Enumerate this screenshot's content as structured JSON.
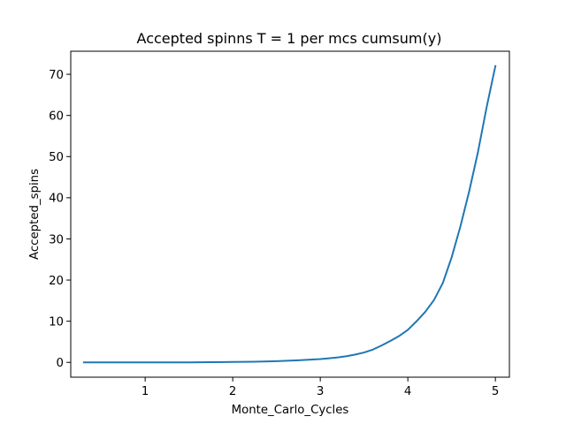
{
  "chart_data": {
    "type": "line",
    "title": "Accepted spinns T = 1 per mcs cumsum(y)",
    "xlabel": "Monte_Carlo_Cycles",
    "ylabel": "Accepted_spins",
    "xlim": [
      0.15,
      5.16
    ],
    "ylim": [
      -3.6,
      75.6
    ],
    "xticks": [
      1,
      2,
      3,
      4,
      5
    ],
    "xtick_labels": [
      "1",
      "2",
      "3",
      "4",
      "5"
    ],
    "yticks": [
      0,
      10,
      20,
      30,
      40,
      50,
      60,
      70
    ],
    "ytick_labels": [
      "0",
      "10",
      "20",
      "30",
      "40",
      "50",
      "60",
      "70"
    ],
    "grid": false,
    "series": [
      {
        "color": "#1f77b4",
        "x": [
          0.3,
          0.5,
          0.75,
          1.0,
          1.25,
          1.5,
          1.75,
          2.0,
          2.25,
          2.5,
          2.75,
          3.0,
          3.1,
          3.2,
          3.3,
          3.4,
          3.5,
          3.6,
          3.7,
          3.8,
          3.9,
          4.0,
          4.1,
          4.2,
          4.3,
          4.4,
          4.5,
          4.6,
          4.7,
          4.8,
          4.9,
          5.0
        ],
        "values": [
          0.0,
          0.0,
          0.0,
          0.0,
          0.0,
          0.0,
          0.05,
          0.1,
          0.15,
          0.3,
          0.5,
          0.8,
          1.0,
          1.2,
          1.5,
          1.9,
          2.4,
          3.1,
          4.1,
          5.2,
          6.4,
          7.9,
          10.0,
          12.3,
          15.2,
          19.3,
          25.5,
          33.0,
          41.5,
          51.0,
          62.0,
          72.0
        ]
      }
    ]
  }
}
